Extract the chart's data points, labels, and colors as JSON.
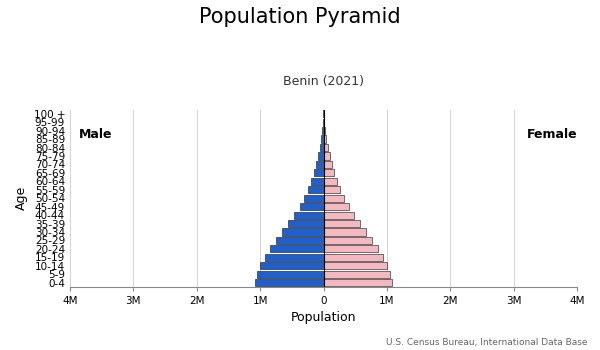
{
  "title": "Population Pyramid",
  "subtitle": "Benin (2021)",
  "xlabel": "Population",
  "ylabel": "Age",
  "source": "U.S. Census Bureau, International Data Base",
  "male_label": "Male",
  "female_label": "Female",
  "age_groups": [
    "0-4",
    "5-9",
    "10-14",
    "15-19",
    "20-24",
    "25-29",
    "30-34",
    "35-39",
    "40-44",
    "45-49",
    "50-54",
    "55-59",
    "60-64",
    "65-69",
    "70-74",
    "75-79",
    "80-84",
    "85-89",
    "90-94",
    "95-99",
    "100 +"
  ],
  "male_values": [
    1080000,
    1050000,
    1000000,
    920000,
    840000,
    745000,
    650000,
    555000,
    460000,
    375000,
    305000,
    245000,
    195000,
    150000,
    115000,
    85000,
    58000,
    35000,
    18000,
    8000,
    3000
  ],
  "female_values": [
    1085000,
    1050000,
    1005000,
    930000,
    855000,
    760000,
    665000,
    570000,
    480000,
    395000,
    325000,
    265000,
    215000,
    170000,
    132000,
    98000,
    68000,
    42000,
    22000,
    10000,
    4000
  ],
  "male_color": "#2060cc",
  "female_color": "#f4b8c1",
  "bar_edge_color": "#111111",
  "bar_edge_width": 0.4,
  "xlim": 4000000,
  "xtick_values": [
    -4000000,
    -3000000,
    -2000000,
    -1000000,
    0,
    1000000,
    2000000,
    3000000,
    4000000
  ],
  "xtick_labels": [
    "4M",
    "3M",
    "2M",
    "1M",
    "0",
    "1M",
    "2M",
    "3M",
    "4M"
  ],
  "background_color": "#ffffff",
  "title_fontsize": 15,
  "subtitle_fontsize": 9,
  "axis_label_fontsize": 9,
  "tick_fontsize": 7.5,
  "male_female_fontsize": 9,
  "source_fontsize": 6.5
}
